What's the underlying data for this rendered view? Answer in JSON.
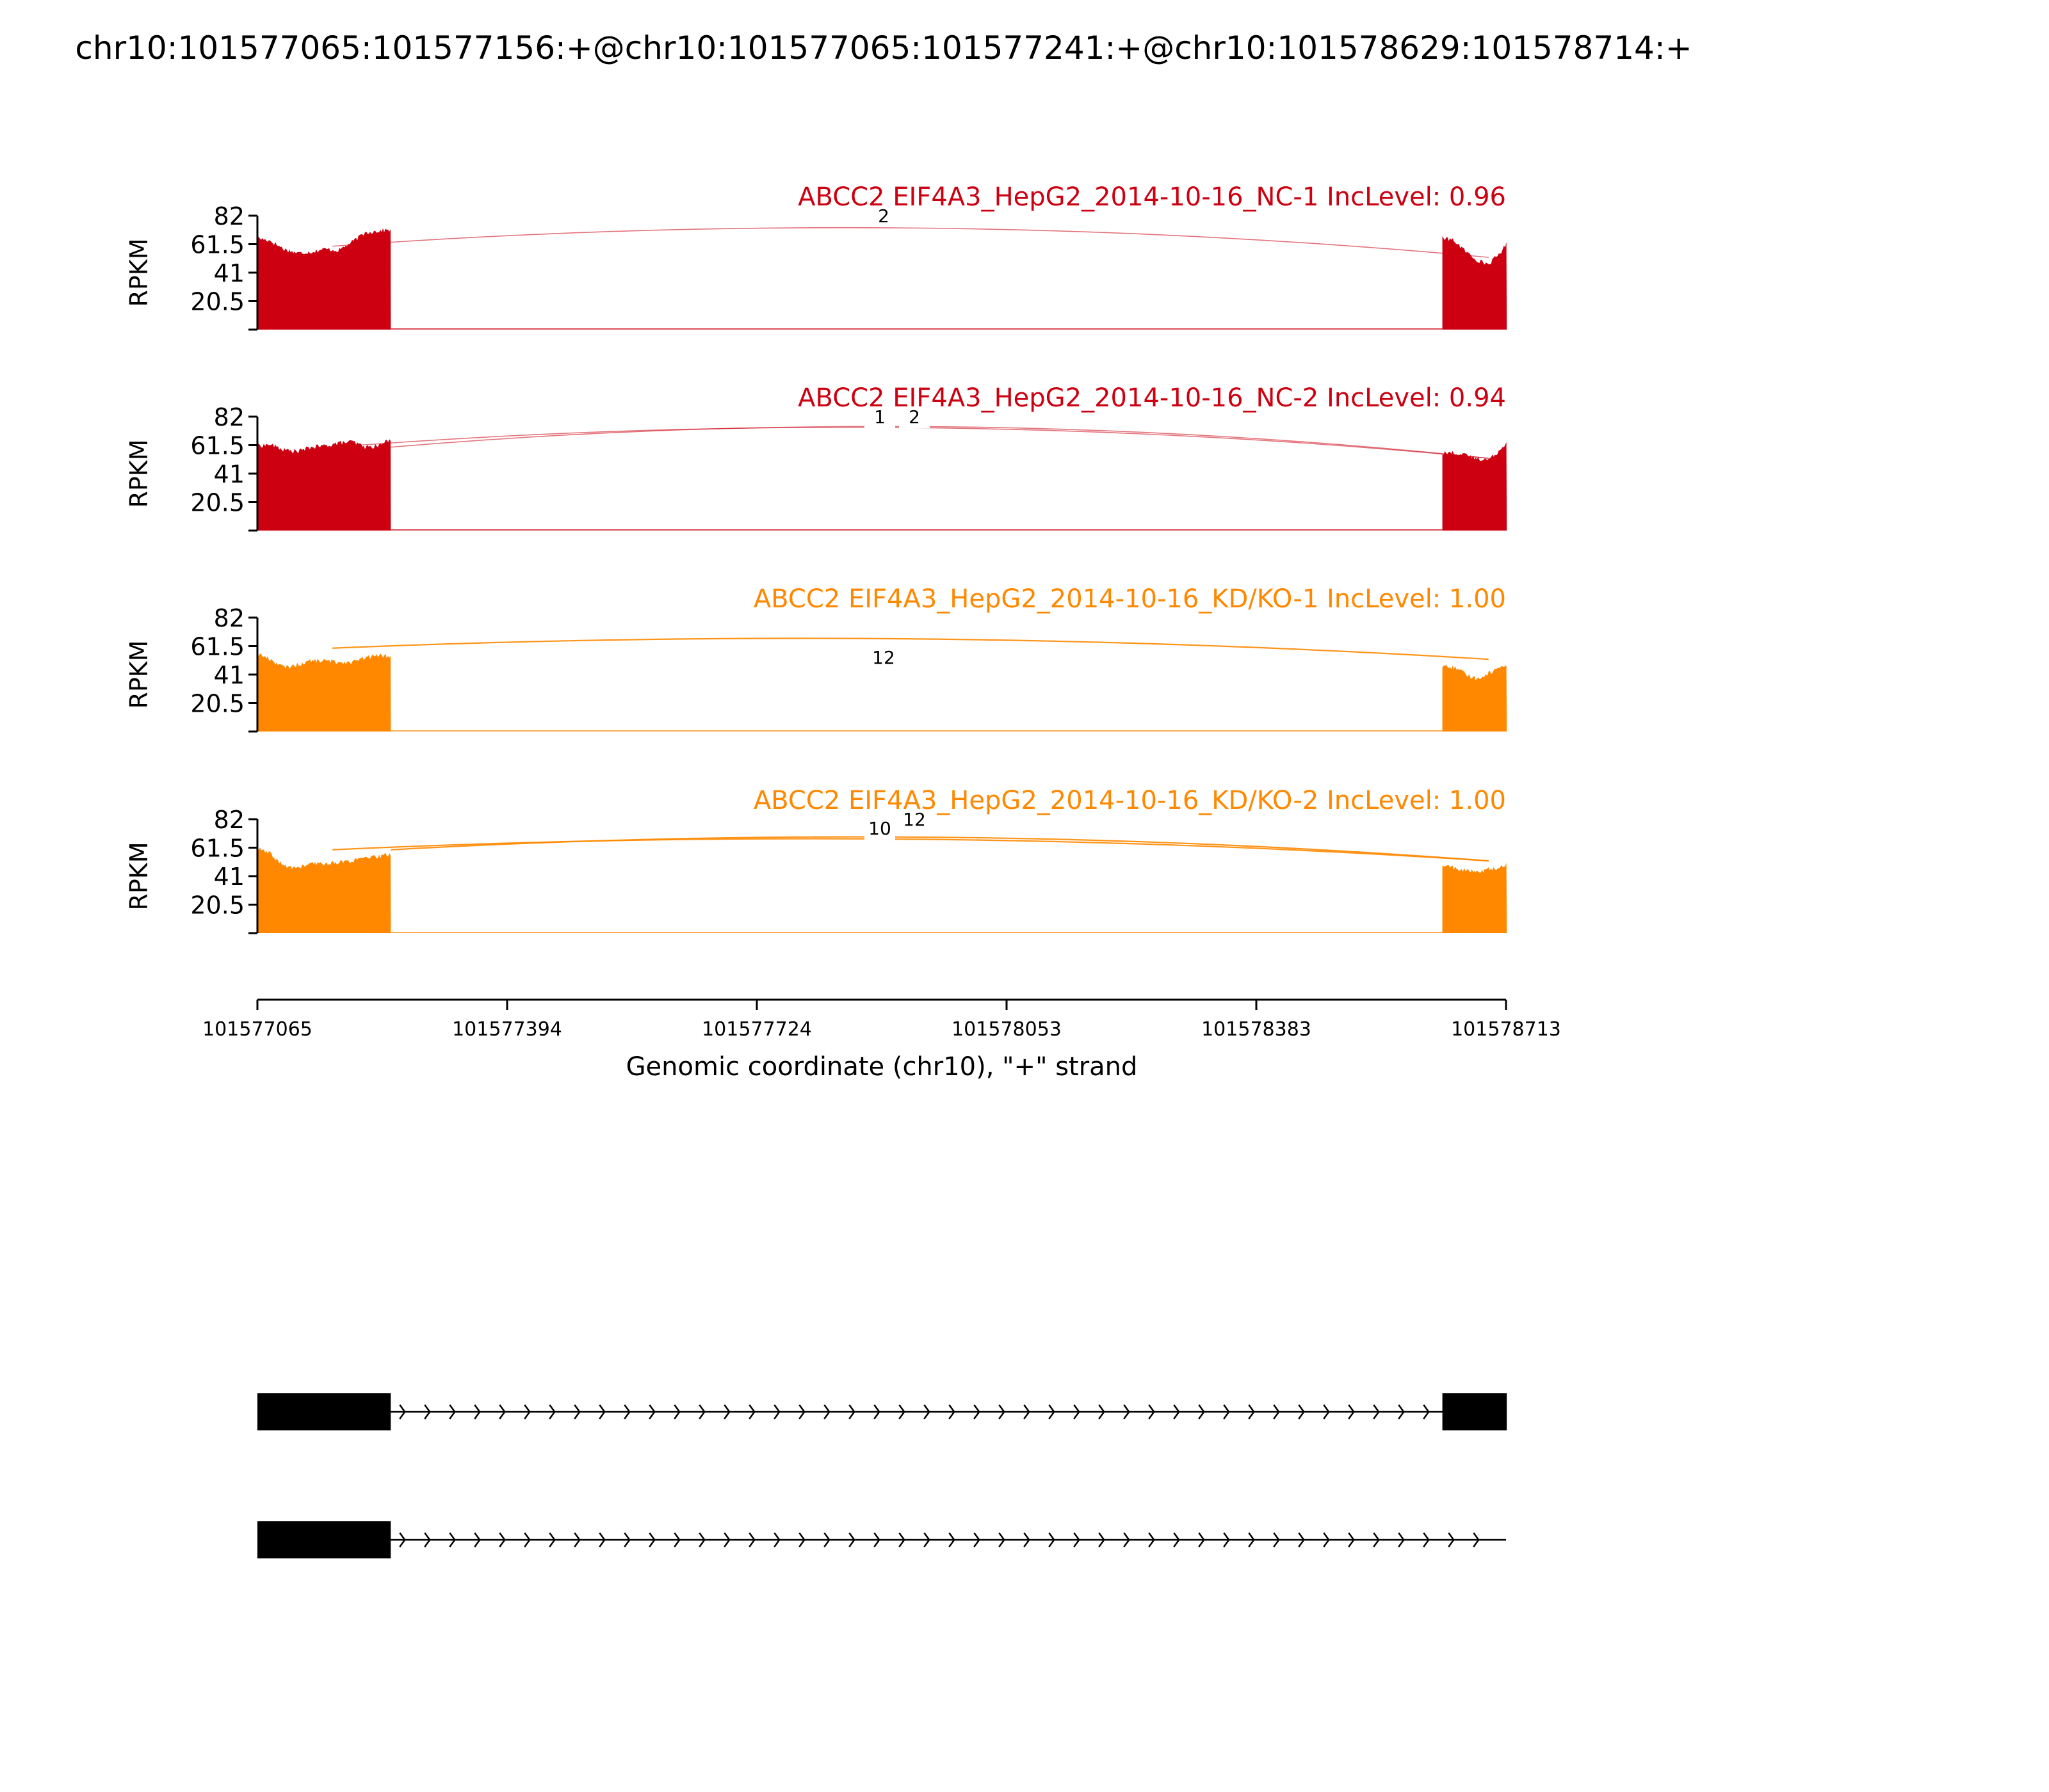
{
  "title": "chr10:101577065:101577156:+@chr10:101577065:101577241:+@chr10:101578629:101578714:+",
  "chart_data": {
    "type": "area",
    "title": "chr10:101577065:101577156:+@chr10:101577065:101577241:+@chr10:101578629:101578714:+",
    "xlabel": "Genomic coordinate (chr10), \"+\" strand",
    "ylabel": "RPKM",
    "xlim": [
      101577065,
      101578713
    ],
    "ylim": [
      0,
      82
    ],
    "x_ticks": [
      "101577065",
      "101577394",
      "101577724",
      "101578053",
      "101578383",
      "101578713"
    ],
    "y_ticks": [
      "82",
      "61.5",
      "41",
      "20.5"
    ],
    "grid": false,
    "exon_regions": [
      [
        101577065,
        101577241
      ],
      [
        101578629,
        101578714
      ]
    ],
    "tracks": [
      {
        "name": "ABCC2 EIF4A3_HepG2_2014-10-16_NC-1 IncLevel: 0.96",
        "color": "#cc0011",
        "coverage_x": [
          101577065,
          101577082,
          101577100,
          101577118,
          101577136,
          101577154,
          101577172,
          101577190,
          101577208,
          101577225,
          101577241,
          101578629,
          101578645,
          101578660,
          101578675,
          101578690,
          101578705,
          101578714
        ],
        "coverage_y": [
          66,
          64,
          58,
          55,
          56,
          58,
          57,
          63,
          70,
          71,
          72,
          66,
          64,
          56,
          50,
          47,
          55,
          62
        ],
        "junctions": [],
        "junction_labels": [
          "2"
        ]
      },
      {
        "name": "ABCC2 EIF4A3_HepG2_2014-10-16_NC-2 IncLevel: 0.94",
        "color": "#cc0011",
        "coverage_x": [
          101577065,
          101577082,
          101577100,
          101577118,
          101577136,
          101577154,
          101577172,
          101577190,
          101577208,
          101577225,
          101577241,
          101578629,
          101578645,
          101578660,
          101578675,
          101578690,
          101578705,
          101578714
        ],
        "coverage_y": [
          61,
          62,
          58,
          57,
          60,
          61,
          63,
          64,
          60,
          61,
          66,
          56,
          56,
          54,
          52,
          51,
          58,
          64
        ],
        "junction_labels": [
          "1",
          "2"
        ]
      },
      {
        "name": "ABCC2 EIF4A3_HepG2_2014-10-16_KD/KO-1 IncLevel: 1.00",
        "color": "#ff8800",
        "coverage_x": [
          101577065,
          101577082,
          101577100,
          101577118,
          101577136,
          101577154,
          101577172,
          101577190,
          101577208,
          101577225,
          101577241,
          101578629,
          101578645,
          101578660,
          101578675,
          101578690,
          101578705,
          101578714
        ],
        "coverage_y": [
          56,
          52,
          46,
          48,
          51,
          51,
          50,
          50,
          53,
          55,
          54,
          47,
          46,
          41,
          38,
          42,
          46,
          49
        ],
        "junction_labels": [
          "12"
        ]
      },
      {
        "name": "ABCC2 EIF4A3_HepG2_2014-10-16_KD/KO-2 IncLevel: 1.00",
        "color": "#ff8800",
        "coverage_x": [
          101577065,
          101577082,
          101577100,
          101577118,
          101577136,
          101577154,
          101577172,
          101577190,
          101577208,
          101577225,
          101577241,
          101578629,
          101578645,
          101578660,
          101578675,
          101578690,
          101578705,
          101578714
        ],
        "coverage_y": [
          61,
          57,
          48,
          47,
          50,
          50,
          51,
          52,
          54,
          55,
          57,
          49,
          47,
          45,
          44,
          46,
          47,
          50
        ],
        "junction_labels": [
          "10",
          "12"
        ]
      }
    ],
    "gene_models": [
      {
        "exons": [
          [
            101577065,
            101577241
          ],
          [
            101578629,
            101578714
          ]
        ]
      },
      {
        "exons": [
          [
            101577065,
            101577241
          ]
        ]
      }
    ]
  }
}
